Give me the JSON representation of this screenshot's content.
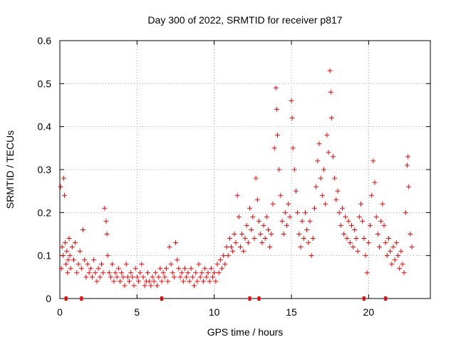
{
  "chart_data": {
    "type": "scatter",
    "title": "Day 300 of 2022, SRMTID for receiver p817",
    "xlabel": "GPS time / hours",
    "ylabel": "SRMTID / TECUs",
    "xlim": [
      0,
      24
    ],
    "ylim": [
      0,
      0.6
    ],
    "xticks": [
      0,
      5,
      10,
      15,
      20
    ],
    "xtick_labels": [
      "0",
      "5",
      "10",
      "15",
      "20"
    ],
    "yticks": [
      0,
      0.1,
      0.2,
      0.3,
      0.4,
      0.5,
      0.6
    ],
    "ytick_labels": [
      "0",
      "0.1",
      "0.2",
      "0.3",
      "0.4",
      "0.5",
      "0.6"
    ],
    "grid": true,
    "marker": "+",
    "marker_color": "#ff0000",
    "axis_color": "#000000",
    "grid_color": "#a0a0a0",
    "series": [
      {
        "name": "SRMTID",
        "points": [
          [
            0.05,
            0.26
          ],
          [
            0.1,
            0.07
          ],
          [
            0.15,
            0.12
          ],
          [
            0.2,
            0.1
          ],
          [
            0.25,
            0.28
          ],
          [
            0.3,
            0.24
          ],
          [
            0.35,
            0.13
          ],
          [
            0.4,
            0.08
          ],
          [
            0.45,
            0.11
          ],
          [
            0.5,
            0.06
          ],
          [
            0.55,
            0.09
          ],
          [
            0.6,
            0.14
          ],
          [
            0.65,
            0.1
          ],
          [
            0.7,
            0.07
          ],
          [
            0.8,
            0.12
          ],
          [
            0.9,
            0.09
          ],
          [
            1.0,
            0.13
          ],
          [
            1.1,
            0.06
          ],
          [
            1.2,
            0.08
          ],
          [
            1.3,
            0.11
          ],
          [
            1.4,
            0.07
          ],
          [
            1.5,
            0.16
          ],
          [
            1.6,
            0.09
          ],
          [
            1.7,
            0.05
          ],
          [
            1.8,
            0.08
          ],
          [
            1.9,
            0.06
          ],
          [
            2.0,
            0.07
          ],
          [
            2.1,
            0.05
          ],
          [
            2.2,
            0.09
          ],
          [
            2.3,
            0.06
          ],
          [
            2.4,
            0.04
          ],
          [
            2.5,
            0.07
          ],
          [
            2.6,
            0.05
          ],
          [
            2.7,
            0.08
          ],
          [
            2.8,
            0.06
          ],
          [
            2.9,
            0.21
          ],
          [
            3.0,
            0.18
          ],
          [
            3.05,
            0.15
          ],
          [
            3.1,
            0.1
          ],
          [
            3.2,
            0.06
          ],
          [
            3.3,
            0.05
          ],
          [
            3.4,
            0.08
          ],
          [
            3.5,
            0.04
          ],
          [
            3.6,
            0.06
          ],
          [
            3.7,
            0.05
          ],
          [
            3.8,
            0.07
          ],
          [
            3.9,
            0.04
          ],
          [
            4.0,
            0.06
          ],
          [
            4.1,
            0.05
          ],
          [
            4.2,
            0.03
          ],
          [
            4.3,
            0.08
          ],
          [
            4.4,
            0.05
          ],
          [
            4.5,
            0.04
          ],
          [
            4.6,
            0.06
          ],
          [
            4.7,
            0.05
          ],
          [
            4.8,
            0.03
          ],
          [
            4.9,
            0.07
          ],
          [
            5.0,
            0.05
          ],
          [
            5.1,
            0.04
          ],
          [
            5.2,
            0.06
          ],
          [
            5.3,
            0.08
          ],
          [
            5.4,
            0.05
          ],
          [
            5.5,
            0.03
          ],
          [
            5.6,
            0.04
          ],
          [
            5.7,
            0.06
          ],
          [
            5.8,
            0.04
          ],
          [
            5.9,
            0.03
          ],
          [
            6.0,
            0.05
          ],
          [
            6.1,
            0.04
          ],
          [
            6.2,
            0.06
          ],
          [
            6.3,
            0.03
          ],
          [
            6.4,
            0.05
          ],
          [
            6.5,
            0.07
          ],
          [
            6.6,
            0.04
          ],
          [
            6.7,
            0.06
          ],
          [
            6.8,
            0.05
          ],
          [
            6.9,
            0.07
          ],
          [
            7.0,
            0.04
          ],
          [
            7.1,
            0.12
          ],
          [
            7.2,
            0.08
          ],
          [
            7.3,
            0.06
          ],
          [
            7.4,
            0.05
          ],
          [
            7.5,
            0.13
          ],
          [
            7.6,
            0.09
          ],
          [
            7.7,
            0.07
          ],
          [
            7.8,
            0.05
          ],
          [
            7.9,
            0.06
          ],
          [
            8.0,
            0.04
          ],
          [
            8.1,
            0.07
          ],
          [
            8.2,
            0.05
          ],
          [
            8.3,
            0.06
          ],
          [
            8.4,
            0.04
          ],
          [
            8.5,
            0.07
          ],
          [
            8.6,
            0.05
          ],
          [
            8.7,
            0.03
          ],
          [
            8.8,
            0.06
          ],
          [
            8.9,
            0.04
          ],
          [
            9.0,
            0.08
          ],
          [
            9.1,
            0.05
          ],
          [
            9.2,
            0.06
          ],
          [
            9.3,
            0.04
          ],
          [
            9.4,
            0.07
          ],
          [
            9.5,
            0.05
          ],
          [
            9.6,
            0.06
          ],
          [
            9.7,
            0.04
          ],
          [
            9.8,
            0.07
          ],
          [
            9.9,
            0.05
          ],
          [
            10.0,
            0.06
          ],
          [
            10.1,
            0.04
          ],
          [
            10.2,
            0.08
          ],
          [
            10.3,
            0.06
          ],
          [
            10.4,
            0.09
          ],
          [
            10.5,
            0.07
          ],
          [
            10.6,
            0.1
          ],
          [
            10.7,
            0.08
          ],
          [
            10.8,
            0.12
          ],
          [
            10.9,
            0.1
          ],
          [
            11.0,
            0.14
          ],
          [
            11.1,
            0.12
          ],
          [
            11.2,
            0.11
          ],
          [
            11.3,
            0.15
          ],
          [
            11.4,
            0.13
          ],
          [
            11.5,
            0.24
          ],
          [
            11.6,
            0.19
          ],
          [
            11.7,
            0.12
          ],
          [
            11.8,
            0.15
          ],
          [
            11.9,
            0.11
          ],
          [
            12.0,
            0.14
          ],
          [
            12.1,
            0.17
          ],
          [
            12.2,
            0.13
          ],
          [
            12.3,
            0.21
          ],
          [
            12.4,
            0.16
          ],
          [
            12.5,
            0.19
          ],
          [
            12.6,
            0.14
          ],
          [
            12.7,
            0.28
          ],
          [
            12.8,
            0.23
          ],
          [
            12.9,
            0.18
          ],
          [
            13.0,
            0.15
          ],
          [
            13.1,
            0.13
          ],
          [
            13.2,
            0.17
          ],
          [
            13.3,
            0.14
          ],
          [
            13.4,
            0.19
          ],
          [
            13.5,
            0.16
          ],
          [
            13.6,
            0.12
          ],
          [
            13.7,
            0.15
          ],
          [
            13.8,
            0.22
          ],
          [
            13.9,
            0.35
          ],
          [
            14.0,
            0.49
          ],
          [
            14.05,
            0.44
          ],
          [
            14.1,
            0.38
          ],
          [
            14.2,
            0.3
          ],
          [
            14.3,
            0.24
          ],
          [
            14.4,
            0.18
          ],
          [
            14.5,
            0.15
          ],
          [
            14.6,
            0.2
          ],
          [
            14.7,
            0.17
          ],
          [
            14.8,
            0.22
          ],
          [
            14.9,
            0.19
          ],
          [
            15.0,
            0.46
          ],
          [
            15.05,
            0.42
          ],
          [
            15.1,
            0.35
          ],
          [
            15.2,
            0.3
          ],
          [
            15.3,
            0.25
          ],
          [
            15.4,
            0.2
          ],
          [
            15.5,
            0.15
          ],
          [
            15.6,
            0.12
          ],
          [
            15.7,
            0.18
          ],
          [
            15.8,
            0.14
          ],
          [
            15.9,
            0.2
          ],
          [
            16.0,
            0.16
          ],
          [
            16.1,
            0.13
          ],
          [
            16.2,
            0.18
          ],
          [
            16.3,
            0.1
          ],
          [
            16.4,
            0.14
          ],
          [
            16.5,
            0.21
          ],
          [
            16.6,
            0.26
          ],
          [
            16.7,
            0.32
          ],
          [
            16.8,
            0.36
          ],
          [
            16.9,
            0.28
          ],
          [
            17.0,
            0.24
          ],
          [
            17.1,
            0.3
          ],
          [
            17.2,
            0.22
          ],
          [
            17.3,
            0.38
          ],
          [
            17.4,
            0.34
          ],
          [
            17.5,
            0.53
          ],
          [
            17.55,
            0.48
          ],
          [
            17.6,
            0.42
          ],
          [
            17.7,
            0.33
          ],
          [
            17.8,
            0.28
          ],
          [
            17.9,
            0.23
          ],
          [
            18.0,
            0.25
          ],
          [
            18.1,
            0.2
          ],
          [
            18.2,
            0.17
          ],
          [
            18.3,
            0.21
          ],
          [
            18.4,
            0.15
          ],
          [
            18.5,
            0.19
          ],
          [
            18.6,
            0.14
          ],
          [
            18.7,
            0.18
          ],
          [
            18.8,
            0.13
          ],
          [
            18.9,
            0.17
          ],
          [
            19.0,
            0.12
          ],
          [
            19.1,
            0.16
          ],
          [
            19.2,
            0.14
          ],
          [
            19.3,
            0.11
          ],
          [
            19.4,
            0.19
          ],
          [
            19.5,
            0.22
          ],
          [
            19.6,
            0.18
          ],
          [
            19.7,
            0.14
          ],
          [
            19.8,
            0.1
          ],
          [
            19.9,
            0.06
          ],
          [
            20.0,
            0.13
          ],
          [
            20.1,
            0.17
          ],
          [
            20.2,
            0.24
          ],
          [
            20.3,
            0.32
          ],
          [
            20.4,
            0.27
          ],
          [
            20.5,
            0.19
          ],
          [
            20.6,
            0.15
          ],
          [
            20.7,
            0.12
          ],
          [
            20.8,
            0.18
          ],
          [
            20.9,
            0.22
          ],
          [
            21.0,
            0.17
          ],
          [
            21.1,
            0.13
          ],
          [
            21.2,
            0.1
          ],
          [
            21.3,
            0.14
          ],
          [
            21.4,
            0.11
          ],
          [
            21.5,
            0.08
          ],
          [
            21.6,
            0.12
          ],
          [
            21.7,
            0.09
          ],
          [
            21.8,
            0.13
          ],
          [
            21.9,
            0.1
          ],
          [
            22.0,
            0.07
          ],
          [
            22.1,
            0.11
          ],
          [
            22.2,
            0.08
          ],
          [
            22.3,
            0.06
          ],
          [
            22.4,
            0.2
          ],
          [
            22.5,
            0.31
          ],
          [
            22.55,
            0.33
          ],
          [
            22.6,
            0.26
          ],
          [
            22.7,
            0.15
          ],
          [
            22.8,
            0.12
          ]
        ]
      }
    ],
    "baseline_markers_x": [
      0.4,
      1.4,
      6.6,
      12.3,
      12.9,
      19.7,
      21.1
    ]
  }
}
